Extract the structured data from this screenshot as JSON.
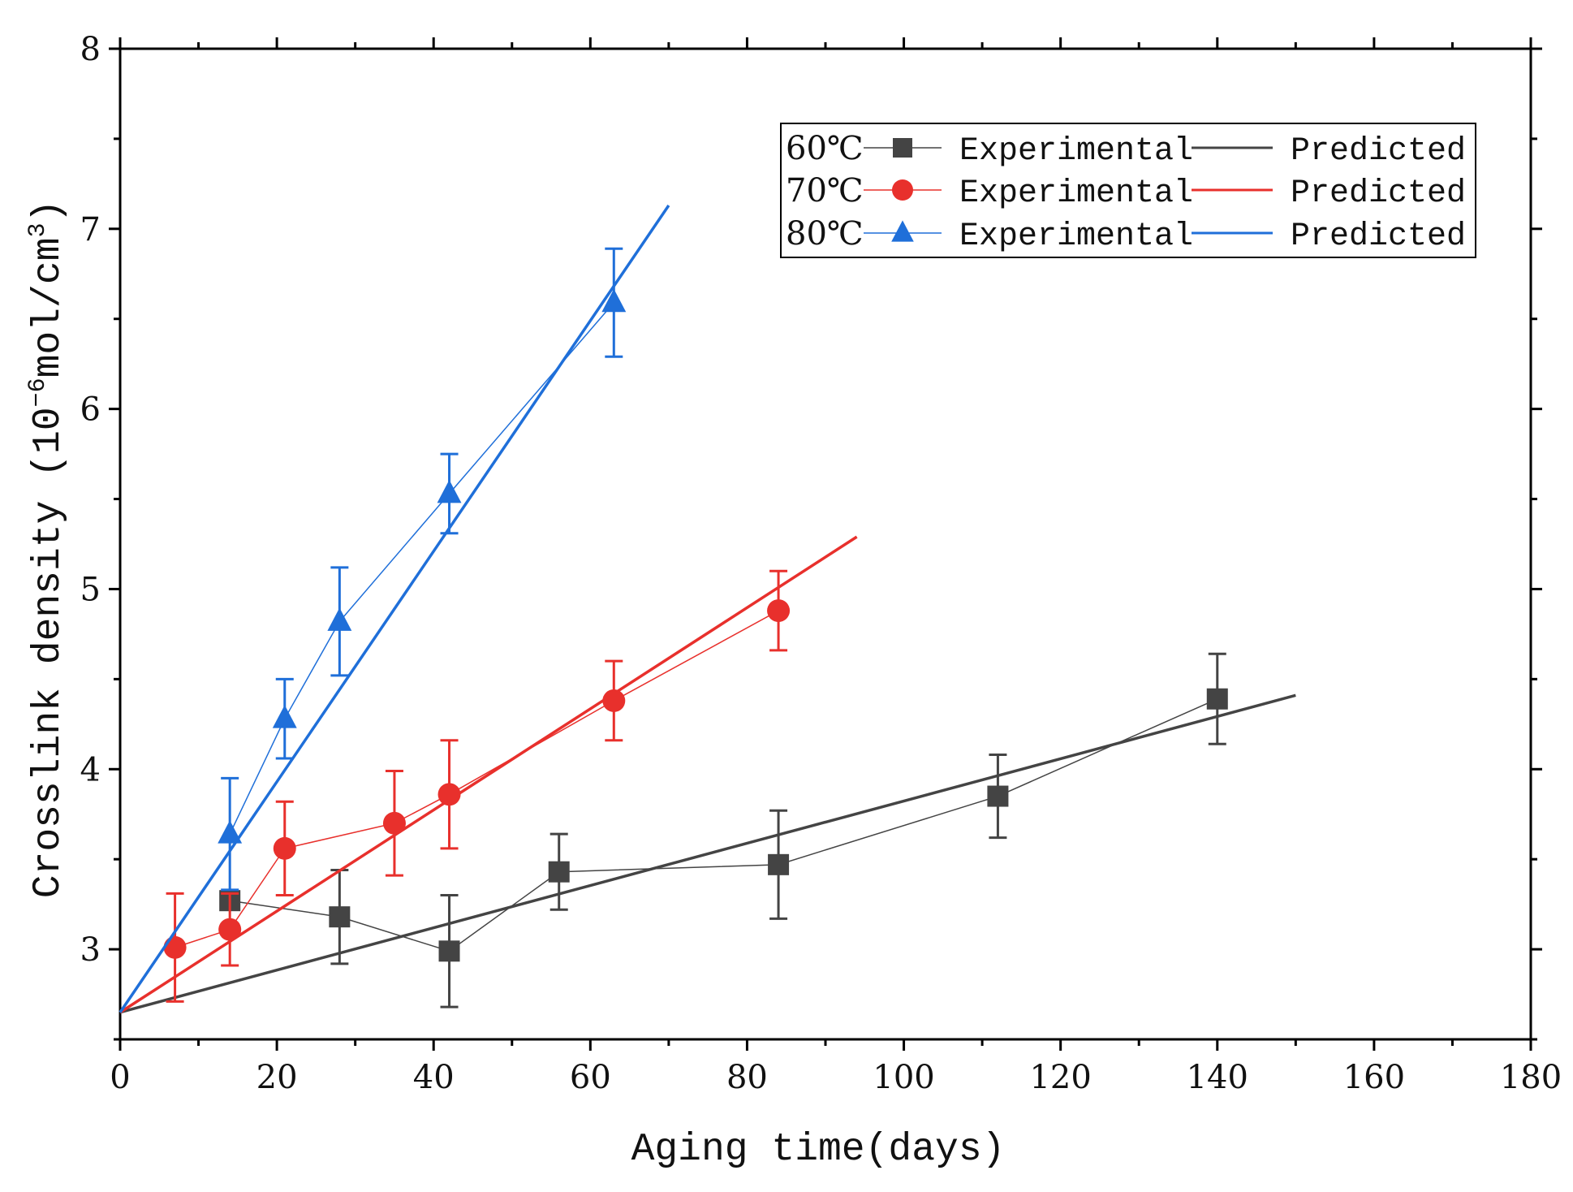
{
  "chart_data": {
    "type": "line",
    "xlabel": "Aging time(days)",
    "ylabel_parts": {
      "pre": "Crosslink density (10",
      "exp1": "−6",
      "mid": "mol/cm",
      "exp2": "3",
      "post": ")"
    },
    "xlim": [
      0,
      180
    ],
    "ylim": [
      2.5,
      8
    ],
    "xticks": [
      0,
      20,
      40,
      60,
      80,
      100,
      120,
      140,
      160,
      180
    ],
    "yticks": [
      3,
      4,
      5,
      6,
      7,
      8
    ],
    "grid": false,
    "legend_position": "top-right",
    "series": [
      {
        "temperature": "60℃",
        "color": "#444444",
        "marker": "square",
        "experimental_label": "Experimental",
        "predicted_label": "Predicted",
        "experimental": {
          "x": [
            14,
            28,
            42,
            56,
            84,
            112,
            140
          ],
          "y": [
            3.27,
            3.18,
            2.99,
            3.43,
            3.47,
            3.85,
            4.39
          ],
          "error": [
            0.0,
            0.26,
            0.31,
            0.21,
            0.3,
            0.23,
            0.25
          ]
        },
        "predicted": {
          "x": [
            0,
            150
          ],
          "y": [
            2.65,
            4.41
          ]
        }
      },
      {
        "temperature": "70℃",
        "color": "#e8302c",
        "marker": "circle",
        "experimental_label": "Experimental",
        "predicted_label": "Predicted",
        "experimental": {
          "x": [
            7,
            14,
            21,
            35,
            42,
            63,
            84
          ],
          "y": [
            3.01,
            3.11,
            3.56,
            3.7,
            3.86,
            4.38,
            4.88
          ],
          "error": [
            0.3,
            0.2,
            0.26,
            0.29,
            0.3,
            0.22,
            0.22
          ]
        },
        "predicted": {
          "x": [
            0,
            94
          ],
          "y": [
            2.65,
            5.29
          ]
        }
      },
      {
        "temperature": "80℃",
        "color": "#1f6fd9",
        "marker": "triangle",
        "experimental_label": "Experimental",
        "predicted_label": "Predicted",
        "experimental": {
          "x": [
            14,
            21,
            28,
            42,
            63
          ],
          "y": [
            3.64,
            4.28,
            4.82,
            5.53,
            6.59
          ],
          "error": [
            0.31,
            0.22,
            0.3,
            0.22,
            0.3
          ]
        },
        "predicted": {
          "x": [
            0,
            70
          ],
          "y": [
            2.65,
            7.13
          ]
        }
      }
    ]
  }
}
